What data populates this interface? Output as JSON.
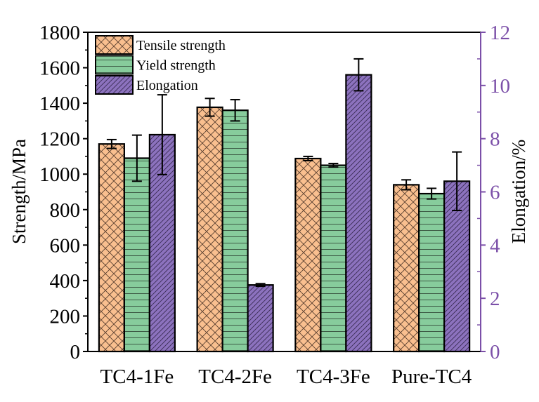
{
  "chart_data": {
    "type": "bar",
    "title": "",
    "xlabel": "",
    "ylabel": "Strength/MPa",
    "y2label": "Elongation/%",
    "categories": [
      "TC4-1Fe",
      "TC4-2Fe",
      "TC4-3Fe",
      "Pure-TC4"
    ],
    "ylim": [
      0,
      1800
    ],
    "y2lim": [
      0,
      12
    ],
    "yticks": [
      0,
      200,
      400,
      600,
      800,
      1000,
      1200,
      1400,
      1600,
      1800
    ],
    "y2ticks": [
      0,
      2,
      4,
      6,
      8,
      10,
      12
    ],
    "grid": false,
    "legend_position": "top-left",
    "series": [
      {
        "name": "Tensile strength",
        "axis": "left",
        "pattern": "crosshatch",
        "color": "#F9BF8F",
        "values": [
          1170,
          1377,
          1088,
          940
        ],
        "errors": [
          25,
          50,
          12,
          28
        ]
      },
      {
        "name": "Yield strength",
        "axis": "left",
        "pattern": "horizontal",
        "color": "#87CC9C",
        "values": [
          1090,
          1360,
          1050,
          890
        ],
        "errors": [
          130,
          60,
          10,
          30
        ]
      },
      {
        "name": "Elongation",
        "axis": "right",
        "pattern": "diagonal",
        "color": "#8C72BE",
        "values": [
          8.15,
          2.5,
          10.4,
          6.4
        ],
        "errors": [
          1.5,
          0.05,
          0.6,
          1.1
        ]
      }
    ],
    "right_axis_color": "#7B4FA8"
  }
}
